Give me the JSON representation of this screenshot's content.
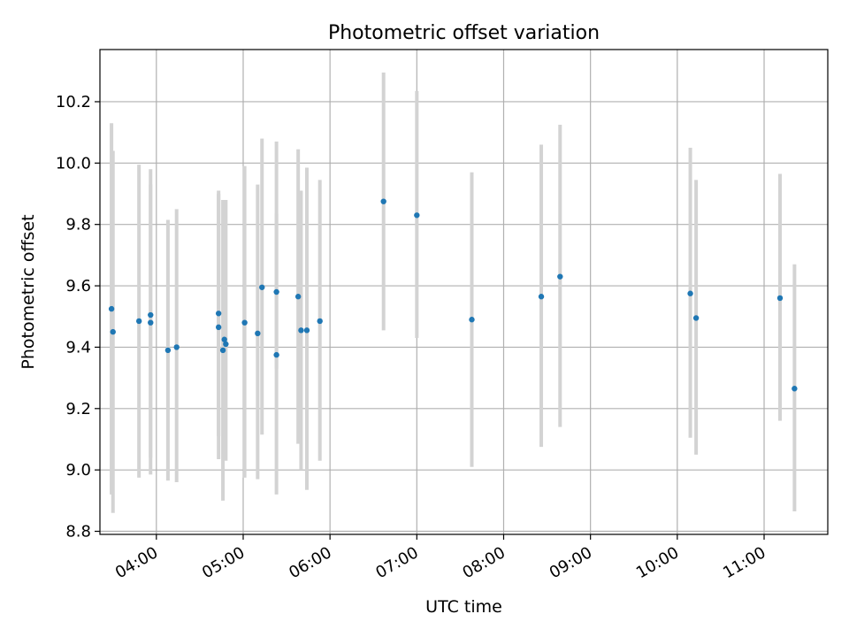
{
  "chart_data": {
    "type": "scatter",
    "title": "Photometric offset variation",
    "xlabel": "UTC time",
    "ylabel": "Photometric offset",
    "x_ticks": [
      "04:00",
      "05:00",
      "06:00",
      "07:00",
      "08:00",
      "09:00",
      "10:00",
      "11:00"
    ],
    "y_ticks": [
      "8.8",
      "9.0",
      "9.2",
      "9.4",
      "9.6",
      "9.8",
      "10.0",
      "10.2"
    ],
    "xlim": [
      "03:21",
      "11:44"
    ],
    "ylim": [
      8.79,
      10.37
    ],
    "grid": true,
    "marker_color": "#1f77b4",
    "errorbar_color": "#d3d3d3",
    "points": [
      {
        "time": "03:29",
        "y": 9.525,
        "err_low": 8.92,
        "err_high": 10.13
      },
      {
        "time": "03:30",
        "y": 9.45,
        "err_low": 8.86,
        "err_high": 10.04
      },
      {
        "time": "03:48",
        "y": 9.485,
        "err_low": 8.975,
        "err_high": 9.995
      },
      {
        "time": "03:56",
        "y": 9.505,
        "err_low": 9.04,
        "err_high": 9.98
      },
      {
        "time": "03:56",
        "y": 9.48,
        "err_low": 8.985,
        "err_high": 9.93
      },
      {
        "time": "04:08",
        "y": 9.39,
        "err_low": 8.965,
        "err_high": 9.815
      },
      {
        "time": "04:14",
        "y": 9.4,
        "err_low": 8.96,
        "err_high": 9.85
      },
      {
        "time": "04:43",
        "y": 9.51,
        "err_low": 9.11,
        "err_high": 9.91
      },
      {
        "time": "04:43",
        "y": 9.465,
        "err_low": 9.035,
        "err_high": 9.9
      },
      {
        "time": "04:46",
        "y": 9.39,
        "err_low": 8.9,
        "err_high": 9.88
      },
      {
        "time": "04:47",
        "y": 9.425,
        "err_low": 9.05,
        "err_high": 9.8
      },
      {
        "time": "04:48",
        "y": 9.41,
        "err_low": 9.03,
        "err_high": 9.88
      },
      {
        "time": "05:01",
        "y": 9.48,
        "err_low": 8.975,
        "err_high": 9.99
      },
      {
        "time": "05:10",
        "y": 9.445,
        "err_low": 8.97,
        "err_high": 9.93
      },
      {
        "time": "05:13",
        "y": 9.595,
        "err_low": 9.115,
        "err_high": 10.08
      },
      {
        "time": "05:23",
        "y": 9.58,
        "err_low": 9.33,
        "err_high": 9.835
      },
      {
        "time": "05:23",
        "y": 9.375,
        "err_low": 8.92,
        "err_high": 10.07
      },
      {
        "time": "05:38",
        "y": 9.565,
        "err_low": 9.085,
        "err_high": 10.045
      },
      {
        "time": "05:40",
        "y": 9.455,
        "err_low": 9.0,
        "err_high": 9.91
      },
      {
        "time": "05:44",
        "y": 9.455,
        "err_low": 8.935,
        "err_high": 9.985
      },
      {
        "time": "05:53",
        "y": 9.485,
        "err_low": 9.03,
        "err_high": 9.945
      },
      {
        "time": "06:37",
        "y": 9.875,
        "err_low": 9.455,
        "err_high": 10.295
      },
      {
        "time": "07:00",
        "y": 9.83,
        "err_low": 9.43,
        "err_high": 10.235
      },
      {
        "time": "07:38",
        "y": 9.49,
        "err_low": 9.01,
        "err_high": 9.97
      },
      {
        "time": "08:26",
        "y": 9.565,
        "err_low": 9.075,
        "err_high": 10.06
      },
      {
        "time": "08:39",
        "y": 9.63,
        "err_low": 9.14,
        "err_high": 10.125
      },
      {
        "time": "10:09",
        "y": 9.575,
        "err_low": 9.105,
        "err_high": 10.05
      },
      {
        "time": "10:13",
        "y": 9.495,
        "err_low": 9.05,
        "err_high": 9.945
      },
      {
        "time": "11:11",
        "y": 9.56,
        "err_low": 9.16,
        "err_high": 9.965
      },
      {
        "time": "11:21",
        "y": 9.265,
        "err_low": 8.865,
        "err_high": 9.67
      }
    ]
  }
}
